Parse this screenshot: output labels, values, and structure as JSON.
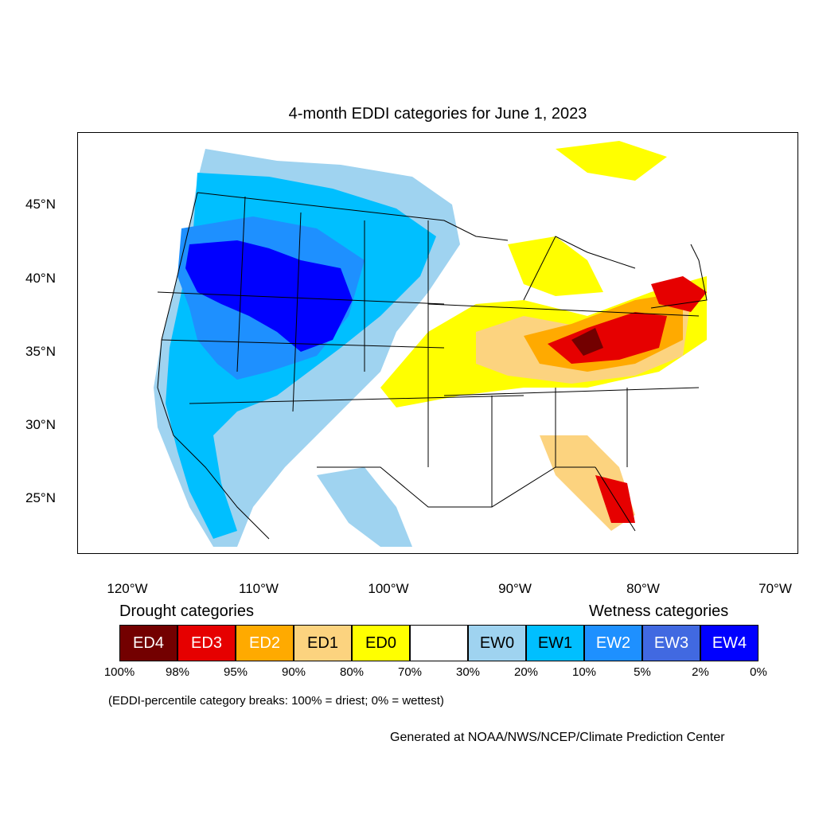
{
  "title": "4-month EDDI categories for June 1, 2023",
  "lat_labels": [
    "45°N",
    "40°N",
    "35°N",
    "30°N",
    "25°N"
  ],
  "lon_labels": [
    "120°W",
    "110°W",
    "100°W",
    "90°W",
    "80°W",
    "70°W"
  ],
  "legend": {
    "drought_heading": "Drought categories",
    "wetness_heading": "Wetness categories",
    "categories": [
      {
        "label": "ED4",
        "color": "#730000"
      },
      {
        "label": "ED3",
        "color": "#e60000"
      },
      {
        "label": "ED2",
        "color": "#ffaa00"
      },
      {
        "label": "ED1",
        "color": "#fcd37f"
      },
      {
        "label": "ED0",
        "color": "#ffff00"
      },
      {
        "label": "",
        "color": "#ffffff"
      },
      {
        "label": "EW0",
        "color": "#9fd3f0"
      },
      {
        "label": "EW1",
        "color": "#00bfff"
      },
      {
        "label": "EW2",
        "color": "#1e90ff"
      },
      {
        "label": "EW3",
        "color": "#4169e1"
      },
      {
        "label": "EW4",
        "color": "#0000ff"
      }
    ],
    "percentiles": [
      "100%",
      "98%",
      "95%",
      "90%",
      "80%",
      "70%",
      "30%",
      "20%",
      "10%",
      "5%",
      "2%",
      "0%"
    ]
  },
  "note": "(EDDI-percentile category breaks: 100% = driest; 0% = wettest)",
  "credit": "Generated at NOAA/NWS/NCEP/Climate Prediction Center"
}
